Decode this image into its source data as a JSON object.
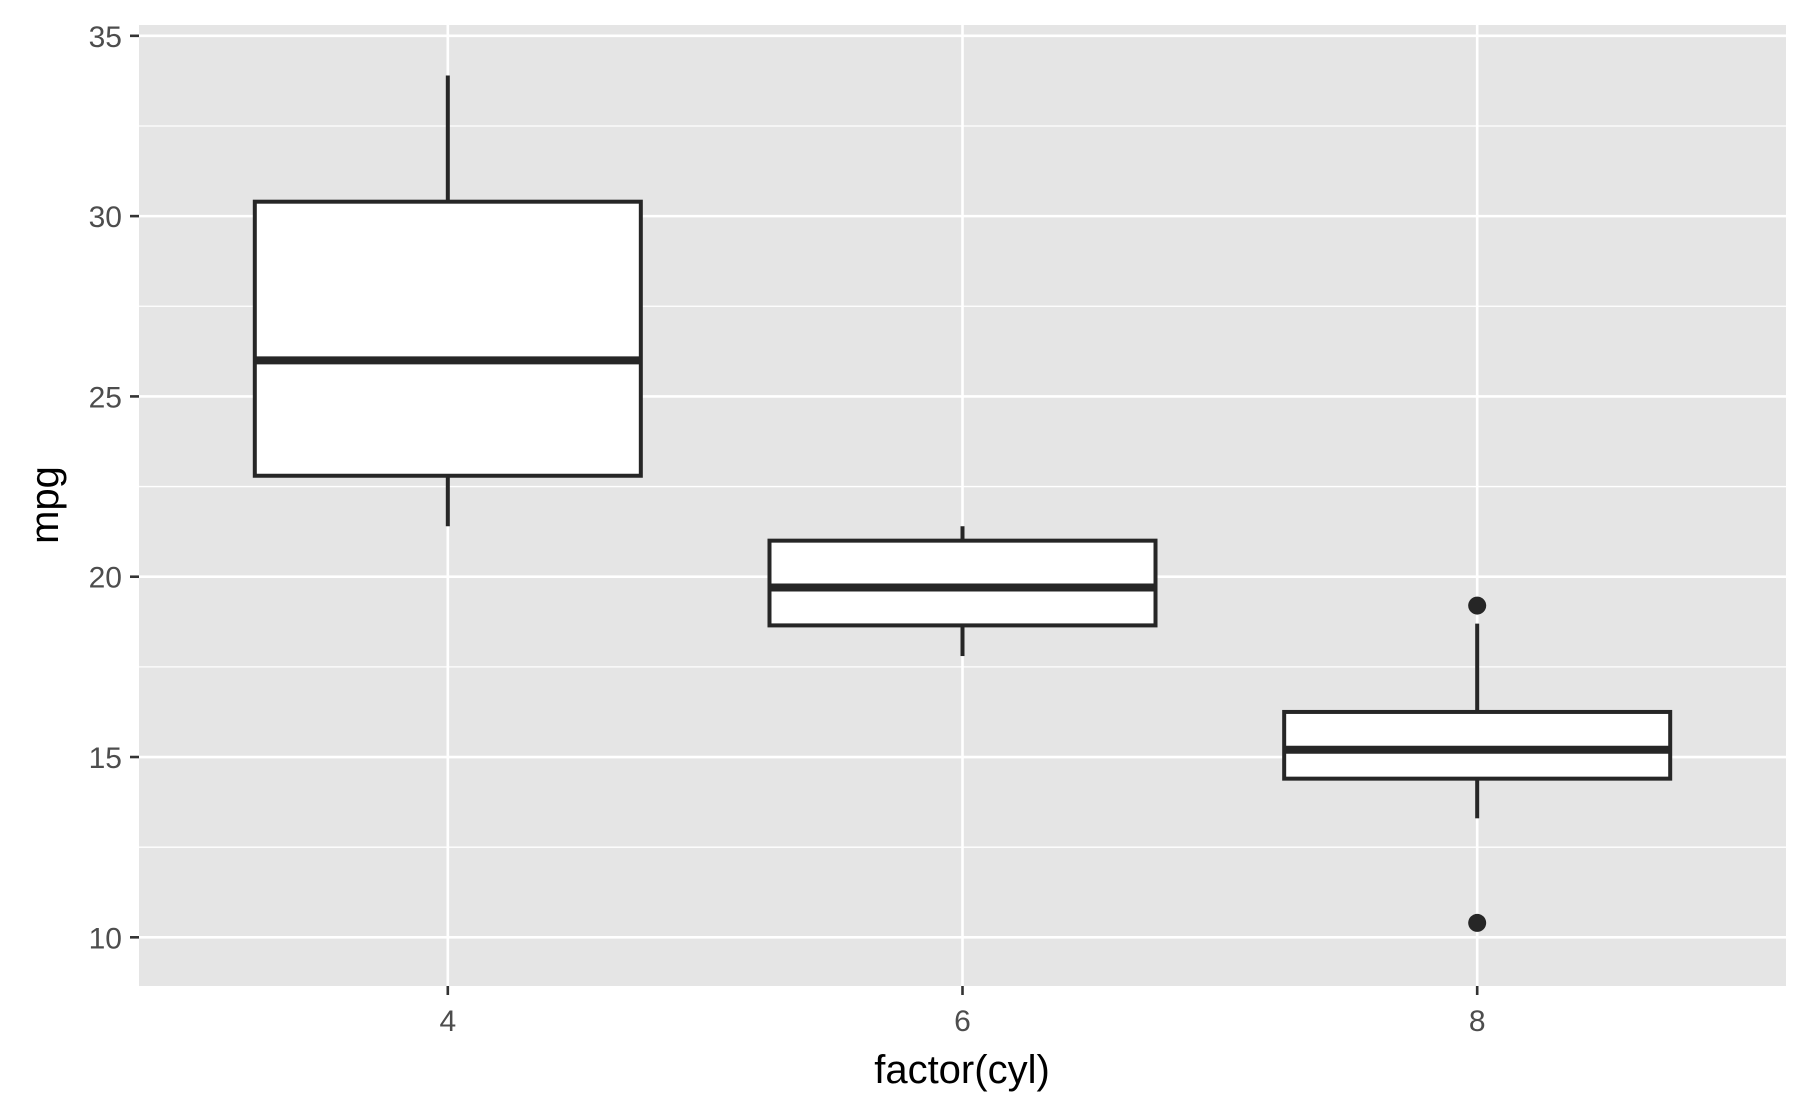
{
  "chart_data": {
    "type": "boxplot",
    "xlabel": "factor(cyl)",
    "ylabel": "mpg",
    "categories": [
      "4",
      "6",
      "8"
    ],
    "ylim": [
      8.65,
      35.3
    ],
    "yticks": [
      10,
      15,
      20,
      25,
      30,
      35
    ],
    "ytick_labels": [
      "10",
      "15",
      "20",
      "25",
      "30",
      "35"
    ],
    "grid": true,
    "boxes": [
      {
        "category": "4",
        "whisker_low": 21.4,
        "q1": 22.8,
        "median": 26.0,
        "q3": 30.4,
        "whisker_high": 33.9,
        "outliers": []
      },
      {
        "category": "6",
        "whisker_low": 17.8,
        "q1": 18.65,
        "median": 19.7,
        "q3": 21.0,
        "whisker_high": 21.4,
        "outliers": []
      },
      {
        "category": "8",
        "whisker_low": 13.3,
        "q1": 14.4,
        "median": 15.2,
        "q3": 16.25,
        "whisker_high": 18.7,
        "outliers": [
          19.2,
          10.4
        ]
      }
    ],
    "colors": {
      "panel_background": "#e5e5e5",
      "grid": "#ffffff",
      "box_fill": "#ffffff",
      "box_stroke": "#262626",
      "tick_text": "#4d4d4d",
      "title_text": "#000000"
    }
  }
}
